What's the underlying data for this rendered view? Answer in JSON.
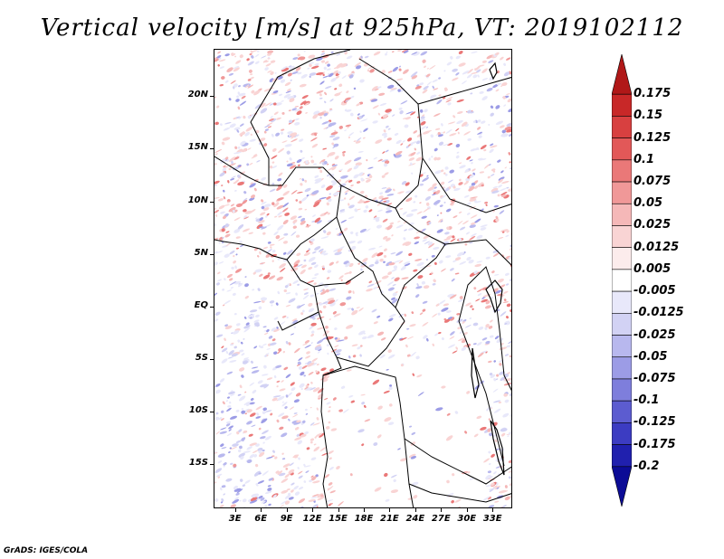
{
  "title": "Vertical velocity [m/s] at 925hPa, VT: 2019102112",
  "credit": "GrADS: IGES/COLA",
  "map": {
    "lat_labels": [
      "20N",
      "15N",
      "10N",
      "5N",
      "EQ",
      "5S",
      "10S",
      "15S"
    ],
    "lon_labels": [
      "3E",
      "6E",
      "9E",
      "12E",
      "15E",
      "18E",
      "21E",
      "24E",
      "27E",
      "30E",
      "33E"
    ]
  },
  "colorbar": {
    "labels": [
      "0.175",
      "0.15",
      "0.125",
      "0.1",
      "0.075",
      "0.05",
      "0.025",
      "0.0125",
      "0.005",
      "-0.005",
      "-0.0125",
      "-0.025",
      "-0.05",
      "-0.075",
      "-0.1",
      "-0.125",
      "-0.175",
      "-0.2"
    ],
    "colors": [
      "#b01818",
      "#c82828",
      "#d84040",
      "#e25858",
      "#ea7878",
      "#f09898",
      "#f5b8b8",
      "#f9d4d4",
      "#fcecec",
      "#ffffff",
      "#e8e8fa",
      "#d2d2f4",
      "#b8b8ee",
      "#9c9ce6",
      "#7e7edc",
      "#5c5cd0",
      "#3c3cc2",
      "#2020ae",
      "#0c0c96"
    ]
  }
}
